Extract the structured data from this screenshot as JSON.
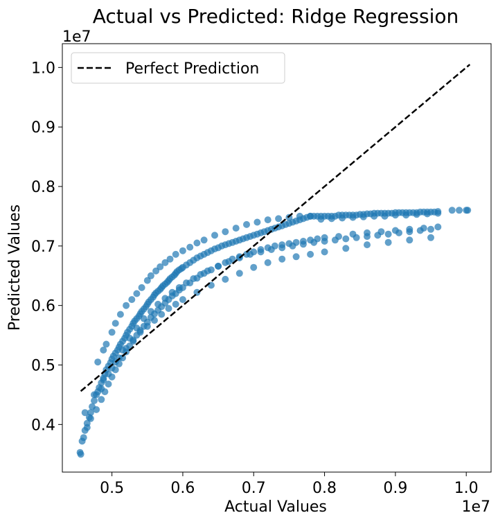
{
  "chart_data": {
    "type": "scatter",
    "title": "Actual vs Predicted: Ridge Regression",
    "xlabel": "Actual Values",
    "ylabel": "Predicted Values",
    "x_offset_label": "1e7",
    "y_offset_label": "1e7",
    "xlim": [
      4300000.0,
      10350000.0
    ],
    "ylim": [
      3200000.0,
      10400000.0
    ],
    "x_ticks": [
      0.5,
      0.6,
      0.7,
      0.8,
      0.9,
      1.0
    ],
    "y_ticks": [
      0.4,
      0.5,
      0.6,
      0.7,
      0.8,
      0.9,
      1.0
    ],
    "grid": false,
    "legend": {
      "position": "top-left",
      "entries": [
        "Perfect Prediction"
      ]
    },
    "series": [
      {
        "kind": "reference_line",
        "name": "Perfect Prediction",
        "style": "dashed",
        "color": "#000000",
        "x": [
          4560000.0,
          10050000.0
        ],
        "y": [
          4560000.0,
          10050000.0
        ]
      },
      {
        "kind": "scatter",
        "color": "#1f77b4",
        "alpha": 0.7,
        "x": [
          4550000.0,
          4560000.0,
          4600000.0,
          4620000.0,
          4650000.0,
          4680000.0,
          4700000.0,
          4720000.0,
          4750000.0,
          4780000.0,
          4800000.0,
          4820000.0,
          4850000.0,
          4880000.0,
          4900000.0,
          4920000.0,
          4950000.0,
          4980000.0,
          5000000.0,
          5020000.0,
          5050000.0,
          5080000.0,
          5100000.0,
          5120000.0,
          5150000.0,
          5180000.0,
          5200000.0,
          5220000.0,
          5250000.0,
          5280000.0,
          5300000.0,
          5320000.0,
          5350000.0,
          5380000.0,
          5400000.0,
          5420000.0,
          5450000.0,
          5480000.0,
          5500000.0,
          5520000.0,
          5550000.0,
          5580000.0,
          5600000.0,
          5620000.0,
          5650000.0,
          5680000.0,
          5700000.0,
          5720000.0,
          5750000.0,
          5780000.0,
          5800000.0,
          5820000.0,
          5850000.0,
          5880000.0,
          5900000.0,
          5920000.0,
          5950000.0,
          5980000.0,
          6000000.0,
          6050000.0,
          6100000.0,
          6150000.0,
          6200000.0,
          6250000.0,
          6300000.0,
          6350000.0,
          6400000.0,
          6450000.0,
          6500000.0,
          6550000.0,
          6600000.0,
          6650000.0,
          6700000.0,
          6750000.0,
          6800000.0,
          6850000.0,
          6900000.0,
          6950000.0,
          7000000.0,
          7050000.0,
          7100000.0,
          7150000.0,
          7200000.0,
          7250000.0,
          7300000.0,
          7350000.0,
          7400000.0,
          7450000.0,
          7500000.0,
          7550000.0,
          7600000.0,
          7650000.0,
          7700000.0,
          7750000.0,
          7800000.0,
          7850000.0,
          7900000.0,
          7950000.0,
          8000000.0,
          8050000.0,
          8100000.0,
          8150000.0,
          8200000.0,
          8250000.0,
          8300000.0,
          8350000.0,
          8400000.0,
          8450000.0,
          8500000.0,
          8550000.0,
          8600000.0,
          8650000.0,
          8700000.0,
          8750000.0,
          8800000.0,
          8850000.0,
          8900000.0,
          8950000.0,
          9000000.0,
          9050000.0,
          9100000.0,
          9150000.0,
          9200000.0,
          9250000.0,
          9300000.0,
          9350000.0,
          9400000.0,
          9450000.0,
          9500000.0,
          9550000.0,
          9600000.0,
          9800000.0,
          9900000.0,
          10020000.0,
          4580000.0,
          4650000.0,
          4700000.0,
          4780000.0,
          4850000.0,
          4900000.0,
          4950000.0,
          5000000.0,
          5050000.0,
          5100000.0,
          5150000.0,
          5200000.0,
          5250000.0,
          5300000.0,
          5350000.0,
          5400000.0,
          5450000.0,
          5500000.0,
          5550000.0,
          5600000.0,
          5650000.0,
          5700000.0,
          5750000.0,
          5800000.0,
          5850000.0,
          5900000.0,
          5950000.0,
          6000000.0,
          6100000.0,
          6200000.0,
          6300000.0,
          6400000.0,
          6500000.0,
          6600000.0,
          6700000.0,
          6800000.0,
          6900000.0,
          7000000.0,
          7100000.0,
          7200000.0,
          7300000.0,
          7400000.0,
          7500000.0,
          7600000.0,
          7700000.0,
          7800000.0,
          7900000.0,
          8000000.0,
          8200000.0,
          8400000.0,
          8600000.0,
          8800000.0,
          9000000.0,
          9200000.0,
          9400000.0,
          9600000.0,
          10000000.0,
          4620000.0,
          4750000.0,
          4880000.0,
          5000000.0,
          5100000.0,
          5200000.0,
          5300000.0,
          5400000.0,
          5500000.0,
          5600000.0,
          5700000.0,
          5800000.0,
          5900000.0,
          6000000.0,
          6200000.0,
          6400000.0,
          6600000.0,
          6800000.0,
          7000000.0,
          7200000.0,
          7400000.0,
          7600000.0,
          7800000.0,
          8000000.0,
          8300000.0,
          8600000.0,
          8900000.0,
          9200000.0,
          9500000.0,
          4800000.0,
          4880000.0,
          4920000.0,
          5000000.0,
          5050000.0,
          5120000.0,
          5200000.0,
          5280000.0,
          5350000.0,
          5420000.0,
          5500000.0,
          5550000.0,
          5620000.0,
          5680000.0,
          5750000.0,
          5820000.0,
          5900000.0,
          6000000.0,
          6100000.0,
          6200000.0,
          6300000.0,
          6450000.0,
          6600000.0,
          6750000.0,
          6900000.0,
          7050000.0,
          7200000.0,
          7350000.0,
          7500000.0,
          7650000.0,
          7800000.0,
          7950000.0,
          8100000.0,
          8250000.0,
          8400000.0,
          8550000.0,
          8700000.0,
          8850000.0,
          9000000.0,
          9150000.0,
          9300000.0,
          9450000.0,
          9600000.0,
          4850000.0,
          4950000.0,
          5050000.0,
          5150000.0,
          5250000.0,
          5350000.0,
          5450000.0,
          5550000.0,
          5650000.0,
          5750000.0,
          5850000.0,
          5950000.0,
          6050000.0,
          6150000.0,
          6250000.0,
          6350000.0,
          6500000.0,
          6650000.0,
          6800000.0,
          6950000.0,
          7100000.0,
          7250000.0,
          7400000.0,
          7550000.0,
          7700000.0,
          7850000.0,
          8000000.0,
          8150000.0,
          8300000.0,
          8450000.0,
          8600000.0,
          8750000.0,
          8900000.0,
          9050000.0,
          9200000.0,
          9350000.0,
          9500000.0
        ],
        "y": [
          3530000.0,
          3500000.0,
          3780000.0,
          3900000.0,
          4020000.0,
          4120000.0,
          4200000.0,
          4300000.0,
          4400000.0,
          4500000.0,
          4550000.0,
          4620000.0,
          4700000.0,
          4780000.0,
          4850000.0,
          4920000.0,
          4980000.0,
          5040000.0,
          5100000.0,
          5150000.0,
          5200000.0,
          5250000.0,
          5300000.0,
          5350000.0,
          5400000.0,
          5450000.0,
          5500000.0,
          5550000.0,
          5600000.0,
          5650000.0,
          5700000.0,
          5740000.0,
          5780000.0,
          5820000.0,
          5860000.0,
          5900000.0,
          5940000.0,
          5980000.0,
          6020000.0,
          6060000.0,
          6100000.0,
          6140000.0,
          6180000.0,
          6210000.0,
          6240000.0,
          6270000.0,
          6300000.0,
          6330000.0,
          6360000.0,
          6390000.0,
          6420000.0,
          6450000.0,
          6480000.0,
          6510000.0,
          6540000.0,
          6570000.0,
          6600000.0,
          6620000.0,
          6640000.0,
          6680000.0,
          6720000.0,
          6760000.0,
          6800000.0,
          6830000.0,
          6860000.0,
          6890000.0,
          6920000.0,
          6950000.0,
          6970000.0,
          7000000.0,
          7020000.0,
          7040000.0,
          7060000.0,
          7080000.0,
          7100000.0,
          7120000.0,
          7140000.0,
          7160000.0,
          7180000.0,
          7200000.0,
          7220000.0,
          7240000.0,
          7260000.0,
          7280000.0,
          7300000.0,
          7320000.0,
          7340000.0,
          7360000.0,
          7380000.0,
          7400000.0,
          7420000.0,
          7440000.0,
          7460000.0,
          7480000.0,
          7500000.0,
          7500000.0,
          7500000.0,
          7500000.0,
          7500000.0,
          7500000.0,
          7500000.0,
          7500000.0,
          7520000.0,
          7520000.0,
          7520000.0,
          7520000.0,
          7520000.0,
          7520000.0,
          7530000.0,
          7530000.0,
          7540000.0,
          7540000.0,
          7550000.0,
          7550000.0,
          7550000.0,
          7550000.0,
          7550000.0,
          7550000.0,
          7560000.0,
          7560000.0,
          7560000.0,
          7560000.0,
          7560000.0,
          7560000.0,
          7560000.0,
          7570000.0,
          7570000.0,
          7570000.0,
          7570000.0,
          7570000.0,
          7580000.0,
          7600000.0,
          7600000.0,
          7600000.0,
          3720000.0,
          3950000.0,
          4100000.0,
          4250000.0,
          4420000.0,
          4550000.0,
          4680000.0,
          4800000.0,
          4920000.0,
          5020000.0,
          5120000.0,
          5220000.0,
          5320000.0,
          5400000.0,
          5500000.0,
          5580000.0,
          5650000.0,
          5720000.0,
          5800000.0,
          5860000.0,
          5920000.0,
          5980000.0,
          6040000.0,
          6100000.0,
          6160000.0,
          6200000.0,
          6260000.0,
          6300000.0,
          6380000.0,
          6460000.0,
          6540000.0,
          6600000.0,
          6660000.0,
          6720000.0,
          6780000.0,
          6820000.0,
          6860000.0,
          6900000.0,
          6940000.0,
          6970000.0,
          7000000.0,
          7020000.0,
          7040000.0,
          7060000.0,
          7080000.0,
          7100000.0,
          7120000.0,
          7140000.0,
          7160000.0,
          7200000.0,
          7220000.0,
          7240000.0,
          7260000.0,
          7280000.0,
          7300000.0,
          7320000.0,
          7600000.0,
          4200000.0,
          4500000.0,
          4750000.0,
          4950000.0,
          5120000.0,
          5280000.0,
          5420000.0,
          5550000.0,
          5650000.0,
          5750000.0,
          5850000.0,
          5950000.0,
          6020000.0,
          6100000.0,
          6220000.0,
          6340000.0,
          6440000.0,
          6540000.0,
          6640000.0,
          6720000.0,
          6780000.0,
          6820000.0,
          6860000.0,
          6900000.0,
          6960000.0,
          7020000.0,
          7060000.0,
          7100000.0,
          7140000.0,
          5050000.0,
          5250000.0,
          5350000.0,
          5550000.0,
          5700000.0,
          5850000.0,
          6000000.0,
          6100000.0,
          6200000.0,
          6300000.0,
          6420000.0,
          6500000.0,
          6580000.0,
          6650000.0,
          6720000.0,
          6780000.0,
          6860000.0,
          6920000.0,
          6980000.0,
          7050000.0,
          7100000.0,
          7180000.0,
          7240000.0,
          7300000.0,
          7360000.0,
          7400000.0,
          7440000.0,
          7460000.0,
          7480000.0,
          7500000.0,
          7500000.0,
          7450000.0,
          7460000.0,
          7470000.0,
          7480000.0,
          7490000.0,
          7500000.0,
          7500000.0,
          7520000.0,
          7520000.0,
          7530000.0,
          7540000.0,
          7550000.0,
          4600000.0,
          4850000.0,
          5050000.0,
          5250000.0,
          5450000.0,
          5620000.0,
          5780000.0,
          5900000.0,
          6020000.0,
          6120000.0,
          6220000.0,
          6300000.0,
          6380000.0,
          6450000.0,
          6520000.0,
          6580000.0,
          6660000.0,
          6740000.0,
          6800000.0,
          6860000.0,
          6900000.0,
          6940000.0,
          6970000.0,
          7000000.0,
          7030000.0,
          7060000.0,
          7080000.0,
          7100000.0,
          7120000.0,
          7140000.0,
          7160000.0,
          7180000.0,
          7200000.0,
          7220000.0,
          7240000.0,
          7260000.0,
          7280000.0
        ]
      }
    ]
  }
}
